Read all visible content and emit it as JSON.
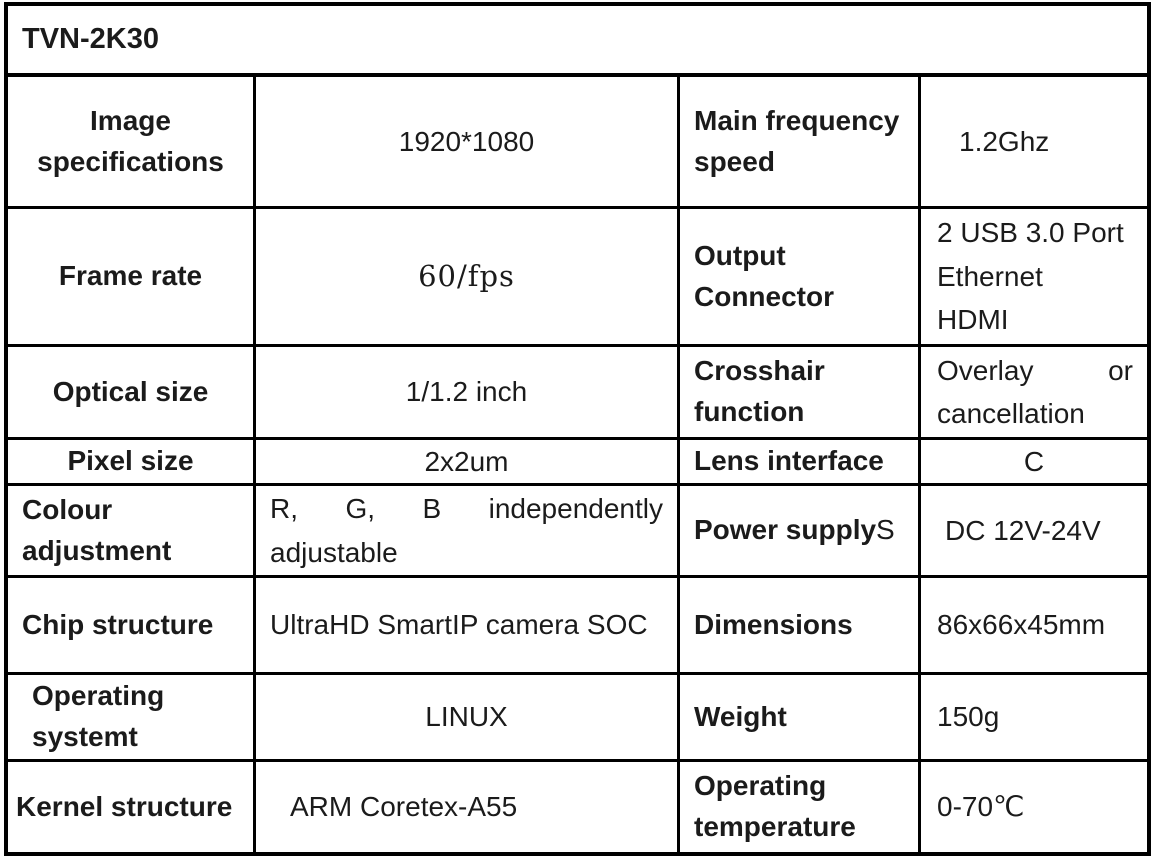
{
  "table": {
    "title": "TVN-2K30",
    "rows": [
      {
        "label_left": "Image specifications",
        "value_left": "1920*1080",
        "label_right": "Main frequency speed",
        "value_right": "1.2Ghz"
      },
      {
        "label_left": "Frame rate",
        "value_left": "60/fps",
        "label_right": "Output Connector",
        "value_right": "2 USB 3.0 Port\nEthernet\nHDMI"
      },
      {
        "label_left": "Optical size",
        "value_left": "1/1.2 inch",
        "label_right": "Crosshair function",
        "value_right": "Overlay or cancellation"
      },
      {
        "label_left": "Pixel size",
        "value_left": "2x2um",
        "label_right": "Lens interface",
        "value_right": "C"
      },
      {
        "label_left": "Colour adjustment",
        "value_left": "R, G, B independently adjustable",
        "label_right": "Power supply",
        "label_right_suffix": "S",
        "value_right": "DC 12V-24V"
      },
      {
        "label_left": "Chip structure",
        "value_left": "UltraHD SmartIP camera SOC",
        "label_right": "Dimensions",
        "value_right": "86x66x45mm"
      },
      {
        "label_left": "Operating systemt",
        "value_left": "LINUX",
        "label_right": "Weight",
        "value_right": "150g"
      },
      {
        "label_left": "Kernel structure",
        "value_left": "ARM Coretex-A55",
        "label_right": "Operating temperature",
        "value_right": "0-70℃"
      }
    ],
    "colors": {
      "border": "#000000",
      "text": "#1b1b1b",
      "background": "#ffffff"
    }
  }
}
